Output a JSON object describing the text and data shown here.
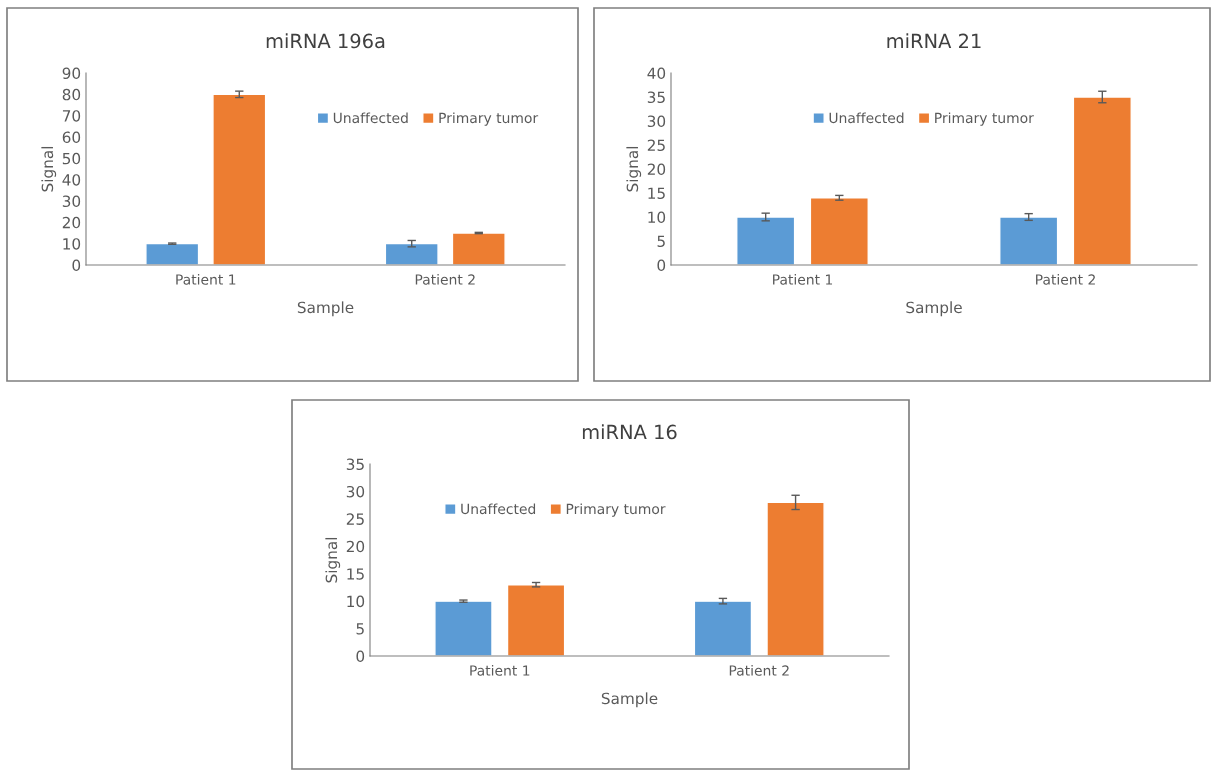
{
  "chart_data": [
    {
      "type": "bar",
      "title": "miRNA 196a",
      "xlabel": "Sample",
      "ylabel": "Signal",
      "categories": [
        "Patient 1",
        "Patient 2"
      ],
      "ylim": [
        0,
        90
      ],
      "yticks": [
        0,
        10,
        20,
        30,
        40,
        50,
        60,
        70,
        80,
        90
      ],
      "grid": false,
      "legend": "top right",
      "series": [
        {
          "name": "Unaffected",
          "color": "#5b9bd5",
          "values": [
            10,
            10
          ],
          "errors": [
            0.3,
            1.5
          ]
        },
        {
          "name": "Primary tumor",
          "color": "#ed7d31",
          "values": [
            80,
            15
          ],
          "errors": [
            1.5,
            0.3
          ]
        }
      ]
    },
    {
      "type": "bar",
      "title": "miRNA 21",
      "xlabel": "Sample",
      "ylabel": "Signal",
      "categories": [
        "Patient 1",
        "Patient 2"
      ],
      "ylim": [
        0,
        40
      ],
      "yticks": [
        0,
        5,
        10,
        15,
        20,
        25,
        30,
        35,
        40
      ],
      "grid": false,
      "legend": "top",
      "series": [
        {
          "name": "Unaffected",
          "color": "#5b9bd5",
          "values": [
            10,
            10
          ],
          "errors": [
            0.8,
            0.7
          ]
        },
        {
          "name": "Primary tumor",
          "color": "#ed7d31",
          "values": [
            14,
            35
          ],
          "errors": [
            0.5,
            1.2
          ]
        }
      ]
    },
    {
      "type": "bar",
      "title": "miRNA 16",
      "xlabel": "Sample",
      "ylabel": "Signal",
      "categories": [
        "Patient 1",
        "Patient 2"
      ],
      "ylim": [
        0,
        35
      ],
      "yticks": [
        0,
        5,
        10,
        15,
        20,
        25,
        30,
        35
      ],
      "grid": false,
      "legend": "top left",
      "series": [
        {
          "name": "Unaffected",
          "color": "#5b9bd5",
          "values": [
            10,
            10
          ],
          "errors": [
            0.2,
            0.5
          ]
        },
        {
          "name": "Primary tumor",
          "color": "#ed7d31",
          "values": [
            13,
            28
          ],
          "errors": [
            0.4,
            1.3
          ]
        }
      ]
    }
  ]
}
